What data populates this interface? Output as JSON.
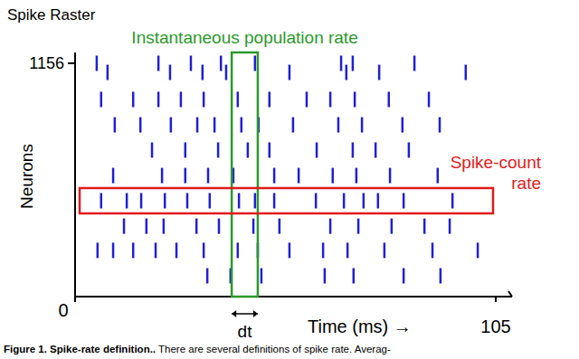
{
  "chart_data": {
    "type": "raster",
    "title": "Spike Raster",
    "x_label": "Time (ms) →",
    "y_label": "Neurons",
    "xlim": [
      0,
      105
    ],
    "ylim": [
      0,
      1156
    ],
    "xticks": [
      0,
      105
    ],
    "yticks": [
      1156
    ],
    "color": "#1f1fd6",
    "rows": [
      {
        "neuron": 1156,
        "spikes": [
          5.4,
          20.8,
          28.9,
          36.4,
          44.9,
          66.4,
          69.3,
          84.7
        ]
      },
      {
        "neuron": 1111,
        "spikes": [
          8.1,
          23.7,
          31.8,
          37.7,
          53.5,
          67.7,
          75.9,
          97.5
        ]
      },
      {
        "neuron": 977,
        "spikes": [
          6.5,
          14.5,
          20.8,
          26.4,
          32.1,
          40.6,
          48.5,
          57.8,
          63.7,
          69.8,
          78.3,
          88.3
        ]
      },
      {
        "neuron": 851,
        "spikes": [
          9.9,
          16.3,
          23.9,
          30.5,
          34.8,
          41.5,
          45.8,
          54.4,
          65.7,
          71.6,
          81.7,
          91.0
        ]
      },
      {
        "neuron": 726,
        "spikes": [
          19.2,
          27.5,
          35.7,
          43.1,
          48.5,
          60.3,
          69.3,
          75.0,
          83.3
        ]
      },
      {
        "neuron": 600,
        "spikes": [
          9.5,
          21.7,
          27.5,
          33.2,
          39.5,
          49.7,
          55.8,
          64.3,
          70.2,
          78.6,
          90.5
        ]
      },
      {
        "neuron": 475,
        "spikes": [
          6.5,
          12.9,
          16.5,
          22.4,
          28.0,
          33.6,
          40.9,
          44.9,
          49.7,
          60.1,
          67.1,
          72.0,
          75.6,
          82.0,
          94.2
        ]
      },
      {
        "neuron": 349,
        "spikes": [
          12.2,
          17.8,
          22.1,
          30.3,
          35.9,
          44.5,
          51.0,
          63.7,
          70.7,
          79.0,
          87.2,
          93.5
        ]
      },
      {
        "neuron": 229,
        "spikes": [
          5.6,
          9.5,
          14.5,
          20.1,
          25.3,
          32.1,
          40.6,
          45.6,
          53.5,
          61.9,
          68.0,
          77.2,
          89.2,
          100.5
        ]
      },
      {
        "neuron": 103,
        "spikes": [
          33.0,
          38.8,
          46.5,
          62.3,
          69.5,
          82.0,
          91.2
        ]
      }
    ],
    "annotations": [
      {
        "label": "Instantaneous population rate",
        "color": "#2a9a2a",
        "xlim": [
          39.1,
          45.6
        ],
        "width_label": "dt"
      },
      {
        "label": "Spike-count rate",
        "color": "#e01b1b",
        "neuron": 475
      }
    ]
  },
  "caption": {
    "title": "Figure 1. Spike-rate definition..",
    "text": "There are several definitions of spike rate. Averag-"
  }
}
